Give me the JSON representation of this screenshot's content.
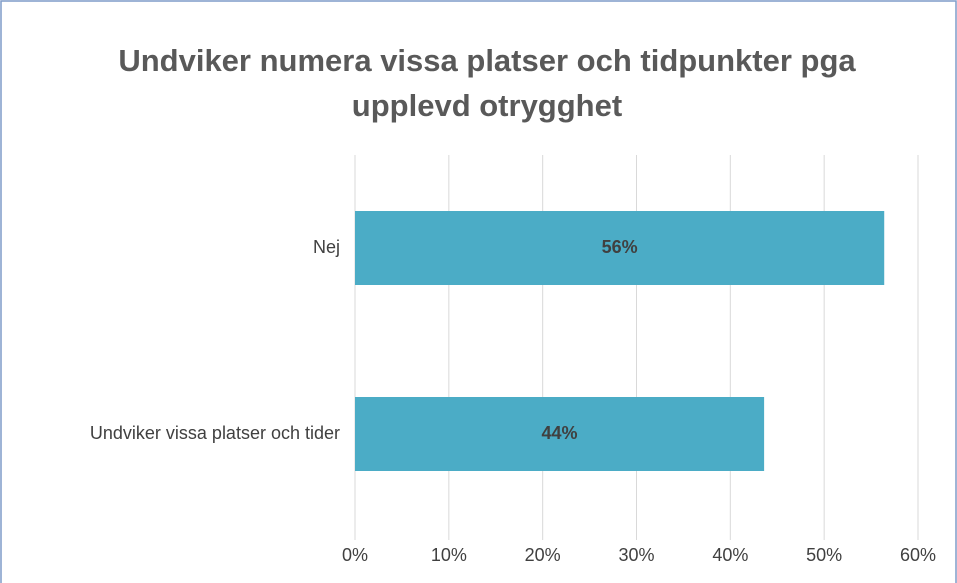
{
  "chart_data": {
    "type": "bar",
    "orientation": "horizontal",
    "title": "Undviker numera vissa platser och tidpunkter pga upplevd otrygghet",
    "categories": [
      "Nej",
      "Undviker vissa platser och tider"
    ],
    "values": [
      56.4,
      43.6
    ],
    "value_labels": [
      "56%",
      "44%"
    ],
    "color": "#4bacc6",
    "xlim": [
      0,
      60
    ],
    "xticks": [
      {
        "value": 0,
        "label": "0%"
      },
      {
        "value": 10,
        "label": "10%"
      },
      {
        "value": 20,
        "label": "20%"
      },
      {
        "value": 30,
        "label": "30%"
      },
      {
        "value": 40,
        "label": "40%"
      },
      {
        "value": 50,
        "label": "50%"
      },
      {
        "value": 60,
        "label": "60%"
      }
    ],
    "grid": true
  }
}
